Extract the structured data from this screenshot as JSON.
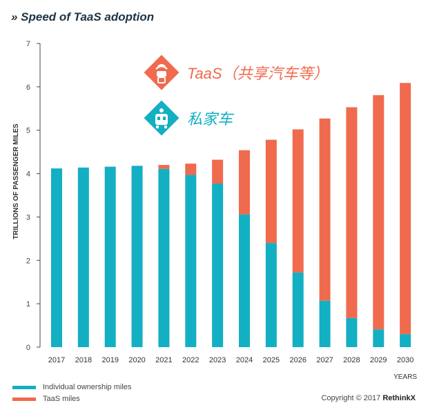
{
  "header": {
    "title": "» Speed of TaaS adoption"
  },
  "colors": {
    "individual": "#13afc3",
    "taas": "#f06a4d",
    "axis": "#444444",
    "grid": "#cccccc"
  },
  "chart_data": {
    "type": "bar",
    "stacked": true,
    "categories": [
      "2017",
      "2018",
      "2019",
      "2020",
      "2021",
      "2022",
      "2023",
      "2024",
      "2025",
      "2026",
      "2027",
      "2028",
      "2029",
      "2030"
    ],
    "series": [
      {
        "name": "Individual ownership miles",
        "values": [
          4.12,
          4.14,
          4.16,
          4.18,
          4.11,
          3.97,
          3.77,
          3.06,
          2.4,
          1.72,
          1.07,
          0.67,
          0.41,
          0.3
        ]
      },
      {
        "name": "TaaS miles",
        "values": [
          0,
          0,
          0,
          0,
          0.09,
          0.26,
          0.55,
          1.48,
          2.38,
          3.3,
          4.2,
          4.86,
          5.4,
          5.79
        ]
      }
    ],
    "ylabel": "TRILLIONS OF PASSENGER MILES",
    "xlabel": "YEARS",
    "ylim": [
      0,
      7
    ],
    "yticks": [
      0,
      1,
      2,
      3,
      4,
      5,
      6,
      7
    ],
    "grid": false,
    "legend_position": "bottom-left"
  },
  "annotations": {
    "taas_label": "TaaS（共享汽车等）",
    "private_label": "私家车",
    "taas_icon": "shared-car-icon",
    "private_icon": "private-car-icon"
  },
  "footer": {
    "copyright": "Copyright © 2017",
    "brand": "RethinkX"
  }
}
